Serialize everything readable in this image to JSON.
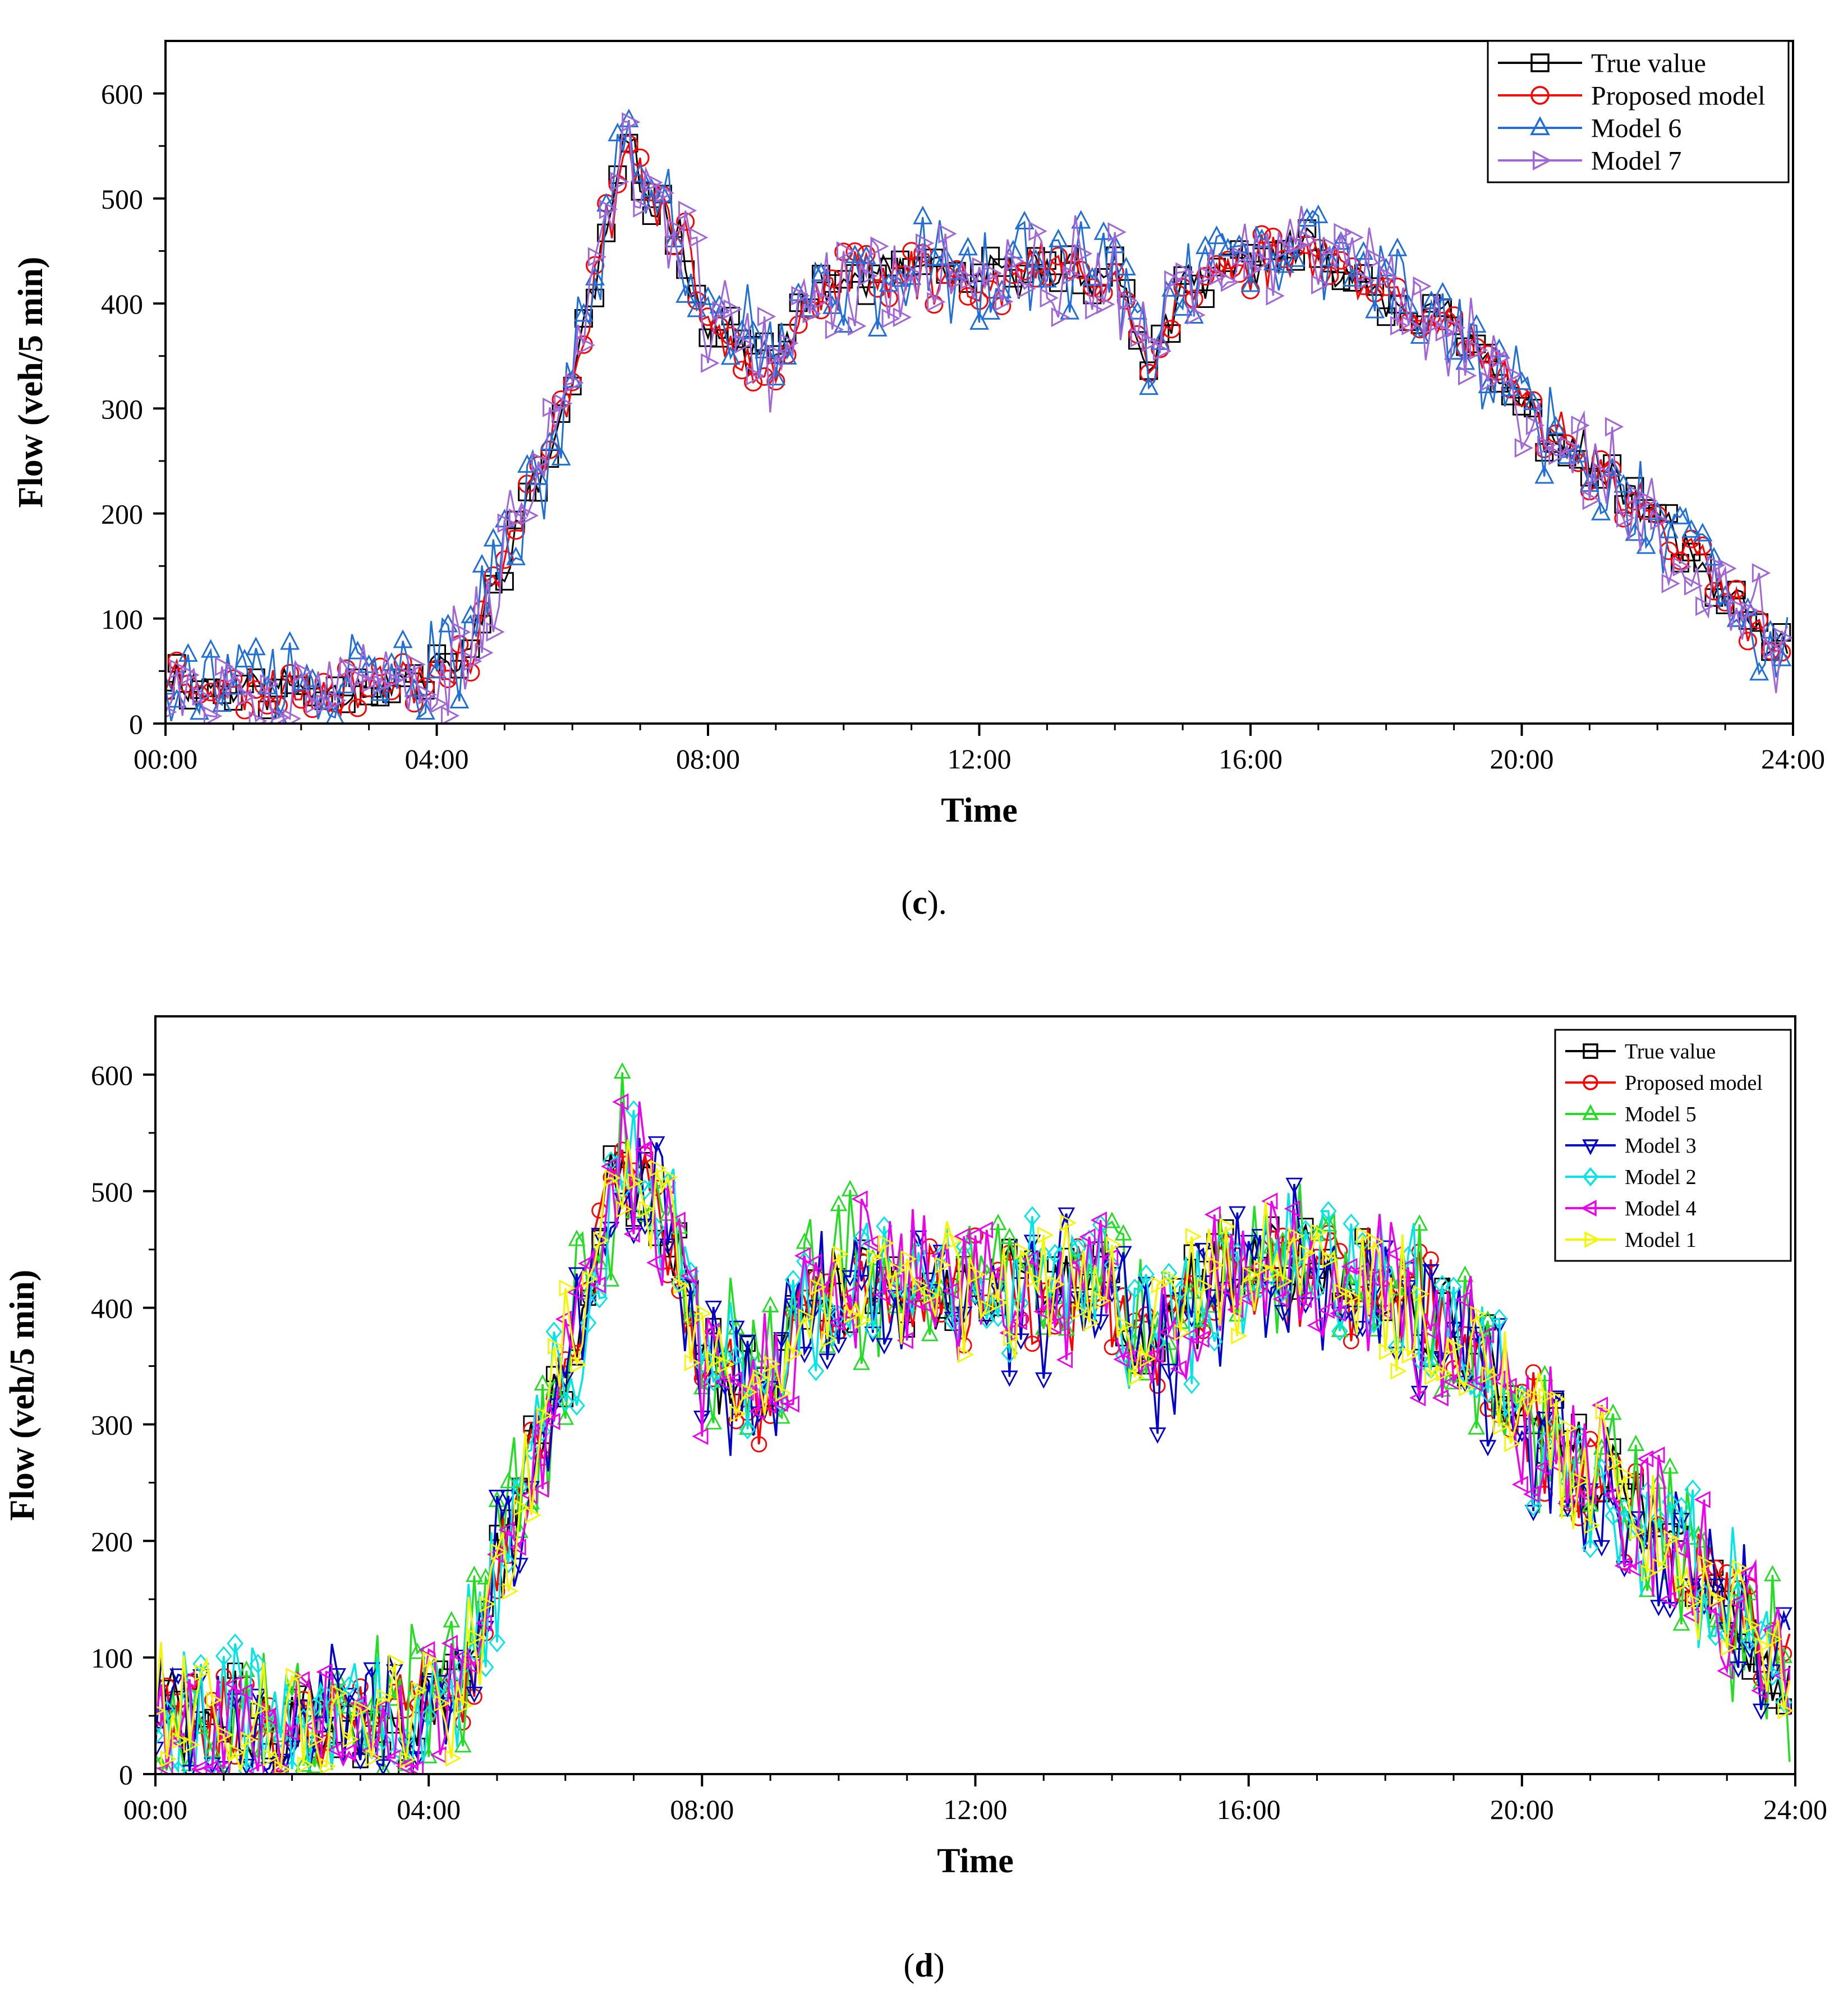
{
  "chart_data": [
    {
      "id": "c",
      "type": "line",
      "caption_letter": "c",
      "caption_suffix": ".",
      "title": "",
      "xlabel": "Time",
      "ylabel": "Flow (veh/5 min)",
      "xlim_hours": [
        0,
        24
      ],
      "ylim": [
        0,
        650
      ],
      "x_ticks": [
        "00:00",
        "04:00",
        "08:00",
        "12:00",
        "16:00",
        "20:00",
        "24:00"
      ],
      "y_ticks": [
        0,
        100,
        200,
        300,
        400,
        500,
        600
      ],
      "legend_position": "top-right",
      "interval_minutes": 5,
      "points_per_series": 288,
      "profile_anchors_hours_values": [
        [
          0,
          45
        ],
        [
          1,
          35
        ],
        [
          2,
          35
        ],
        [
          3,
          35
        ],
        [
          4,
          48
        ],
        [
          4.5,
          70
        ],
        [
          5,
          160
        ],
        [
          5.5,
          230
        ],
        [
          6,
          330
        ],
        [
          6.4,
          440
        ],
        [
          6.8,
          555
        ],
        [
          7.1,
          500
        ],
        [
          7.5,
          480
        ],
        [
          8,
          380
        ],
        [
          8.5,
          360
        ],
        [
          9,
          340
        ],
        [
          9.5,
          410
        ],
        [
          10,
          420
        ],
        [
          11,
          430
        ],
        [
          12,
          420
        ],
        [
          13,
          435
        ],
        [
          14,
          430
        ],
        [
          14.5,
          340
        ],
        [
          15,
          410
        ],
        [
          16,
          440
        ],
        [
          17,
          450
        ],
        [
          17.5,
          430
        ],
        [
          18,
          410
        ],
        [
          19,
          380
        ],
        [
          20,
          300
        ],
        [
          21,
          250
        ],
        [
          22,
          195
        ],
        [
          23,
          120
        ],
        [
          24,
          50
        ]
      ],
      "series": [
        {
          "name": "True value",
          "color": "#000000",
          "marker": "square",
          "noise": 18,
          "offset": 0,
          "seed": 11
        },
        {
          "name": "Proposed model",
          "color": "#ff0000",
          "marker": "circle",
          "noise": 22,
          "offset": 0,
          "seed": 23
        },
        {
          "name": "Model 6",
          "color": "#1f6fd6",
          "marker": "triangle-up",
          "noise": 40,
          "offset": 4,
          "seed": 37
        },
        {
          "name": "Model 7",
          "color": "#a066d8",
          "marker": "triangle-right",
          "noise": 40,
          "offset": 2,
          "seed": 53
        }
      ]
    },
    {
      "id": "d",
      "type": "line",
      "caption_letter": "d",
      "caption_suffix": "",
      "title": "",
      "xlabel": "Time",
      "ylabel": "Flow (veh/5 min)",
      "xlim_hours": [
        0,
        24
      ],
      "ylim": [
        0,
        650
      ],
      "x_ticks": [
        "00:00",
        "04:00",
        "08:00",
        "12:00",
        "16:00",
        "20:00",
        "24:00"
      ],
      "y_ticks": [
        0,
        100,
        200,
        300,
        400,
        500,
        600
      ],
      "legend_position": "top-right",
      "interval_minutes": 5,
      "points_per_series": 288,
      "profile_anchors_hours_values": [
        [
          0,
          55
        ],
        [
          1,
          40
        ],
        [
          2,
          45
        ],
        [
          3,
          40
        ],
        [
          4,
          60
        ],
        [
          4.5,
          80
        ],
        [
          5,
          180
        ],
        [
          5.5,
          260
        ],
        [
          6,
          350
        ],
        [
          6.4,
          430
        ],
        [
          6.8,
          520
        ],
        [
          7.1,
          500
        ],
        [
          7.5,
          470
        ],
        [
          8,
          360
        ],
        [
          8.5,
          340
        ],
        [
          9,
          330
        ],
        [
          9.5,
          410
        ],
        [
          10,
          420
        ],
        [
          11,
          420
        ],
        [
          12,
          415
        ],
        [
          13,
          420
        ],
        [
          14,
          420
        ],
        [
          14.5,
          360
        ],
        [
          15,
          400
        ],
        [
          16,
          430
        ],
        [
          17,
          440
        ],
        [
          17.5,
          430
        ],
        [
          18,
          410
        ],
        [
          19,
          380
        ],
        [
          20,
          300
        ],
        [
          21,
          260
        ],
        [
          22,
          210
        ],
        [
          23,
          140
        ],
        [
          24,
          70
        ]
      ],
      "series": [
        {
          "name": "True value",
          "color": "#000000",
          "marker": "square",
          "noise": 35,
          "offset": 0,
          "seed": 71
        },
        {
          "name": "Proposed model",
          "color": "#ff0000",
          "marker": "circle",
          "noise": 40,
          "offset": 0,
          "seed": 83
        },
        {
          "name": "Model 5",
          "color": "#22dd22",
          "marker": "triangle-up",
          "noise": 55,
          "offset": 3,
          "seed": 97
        },
        {
          "name": "Model 3",
          "color": "#0000cc",
          "marker": "triangle-down",
          "noise": 58,
          "offset": -3,
          "seed": 101
        },
        {
          "name": "Model 2",
          "color": "#00e5e5",
          "marker": "diamond",
          "noise": 58,
          "offset": 2,
          "seed": 113
        },
        {
          "name": "Model 4",
          "color": "#ee00ee",
          "marker": "triangle-left",
          "noise": 55,
          "offset": 0,
          "seed": 127
        },
        {
          "name": "Model 1",
          "color": "#f5f500",
          "marker": "triangle-right",
          "noise": 45,
          "offset": 1,
          "seed": 139
        }
      ]
    }
  ]
}
